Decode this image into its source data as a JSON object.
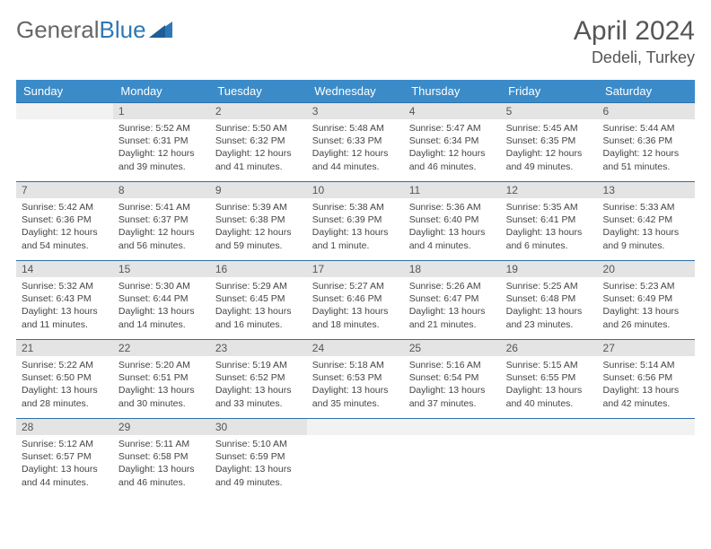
{
  "brand": {
    "part1": "General",
    "part2": "Blue"
  },
  "title": "April 2024",
  "location": "Dedeli, Turkey",
  "colors": {
    "header_bg": "#3b8bc9",
    "daynum_bg": "#e4e4e4",
    "rule": "#2f6fa8"
  },
  "day_headers": [
    "Sunday",
    "Monday",
    "Tuesday",
    "Wednesday",
    "Thursday",
    "Friday",
    "Saturday"
  ],
  "start_offset": 1,
  "days": [
    {
      "n": 1,
      "sr": "5:52 AM",
      "ss": "6:31 PM",
      "dl": "12 hours and 39 minutes."
    },
    {
      "n": 2,
      "sr": "5:50 AM",
      "ss": "6:32 PM",
      "dl": "12 hours and 41 minutes."
    },
    {
      "n": 3,
      "sr": "5:48 AM",
      "ss": "6:33 PM",
      "dl": "12 hours and 44 minutes."
    },
    {
      "n": 4,
      "sr": "5:47 AM",
      "ss": "6:34 PM",
      "dl": "12 hours and 46 minutes."
    },
    {
      "n": 5,
      "sr": "5:45 AM",
      "ss": "6:35 PM",
      "dl": "12 hours and 49 minutes."
    },
    {
      "n": 6,
      "sr": "5:44 AM",
      "ss": "6:36 PM",
      "dl": "12 hours and 51 minutes."
    },
    {
      "n": 7,
      "sr": "5:42 AM",
      "ss": "6:36 PM",
      "dl": "12 hours and 54 minutes."
    },
    {
      "n": 8,
      "sr": "5:41 AM",
      "ss": "6:37 PM",
      "dl": "12 hours and 56 minutes."
    },
    {
      "n": 9,
      "sr": "5:39 AM",
      "ss": "6:38 PM",
      "dl": "12 hours and 59 minutes."
    },
    {
      "n": 10,
      "sr": "5:38 AM",
      "ss": "6:39 PM",
      "dl": "13 hours and 1 minute."
    },
    {
      "n": 11,
      "sr": "5:36 AM",
      "ss": "6:40 PM",
      "dl": "13 hours and 4 minutes."
    },
    {
      "n": 12,
      "sr": "5:35 AM",
      "ss": "6:41 PM",
      "dl": "13 hours and 6 minutes."
    },
    {
      "n": 13,
      "sr": "5:33 AM",
      "ss": "6:42 PM",
      "dl": "13 hours and 9 minutes."
    },
    {
      "n": 14,
      "sr": "5:32 AM",
      "ss": "6:43 PM",
      "dl": "13 hours and 11 minutes."
    },
    {
      "n": 15,
      "sr": "5:30 AM",
      "ss": "6:44 PM",
      "dl": "13 hours and 14 minutes."
    },
    {
      "n": 16,
      "sr": "5:29 AM",
      "ss": "6:45 PM",
      "dl": "13 hours and 16 minutes."
    },
    {
      "n": 17,
      "sr": "5:27 AM",
      "ss": "6:46 PM",
      "dl": "13 hours and 18 minutes."
    },
    {
      "n": 18,
      "sr": "5:26 AM",
      "ss": "6:47 PM",
      "dl": "13 hours and 21 minutes."
    },
    {
      "n": 19,
      "sr": "5:25 AM",
      "ss": "6:48 PM",
      "dl": "13 hours and 23 minutes."
    },
    {
      "n": 20,
      "sr": "5:23 AM",
      "ss": "6:49 PM",
      "dl": "13 hours and 26 minutes."
    },
    {
      "n": 21,
      "sr": "5:22 AM",
      "ss": "6:50 PM",
      "dl": "13 hours and 28 minutes."
    },
    {
      "n": 22,
      "sr": "5:20 AM",
      "ss": "6:51 PM",
      "dl": "13 hours and 30 minutes."
    },
    {
      "n": 23,
      "sr": "5:19 AM",
      "ss": "6:52 PM",
      "dl": "13 hours and 33 minutes."
    },
    {
      "n": 24,
      "sr": "5:18 AM",
      "ss": "6:53 PM",
      "dl": "13 hours and 35 minutes."
    },
    {
      "n": 25,
      "sr": "5:16 AM",
      "ss": "6:54 PM",
      "dl": "13 hours and 37 minutes."
    },
    {
      "n": 26,
      "sr": "5:15 AM",
      "ss": "6:55 PM",
      "dl": "13 hours and 40 minutes."
    },
    {
      "n": 27,
      "sr": "5:14 AM",
      "ss": "6:56 PM",
      "dl": "13 hours and 42 minutes."
    },
    {
      "n": 28,
      "sr": "5:12 AM",
      "ss": "6:57 PM",
      "dl": "13 hours and 44 minutes."
    },
    {
      "n": 29,
      "sr": "5:11 AM",
      "ss": "6:58 PM",
      "dl": "13 hours and 46 minutes."
    },
    {
      "n": 30,
      "sr": "5:10 AM",
      "ss": "6:59 PM",
      "dl": "13 hours and 49 minutes."
    }
  ],
  "labels": {
    "sunrise": "Sunrise:",
    "sunset": "Sunset:",
    "daylight": "Daylight:"
  }
}
